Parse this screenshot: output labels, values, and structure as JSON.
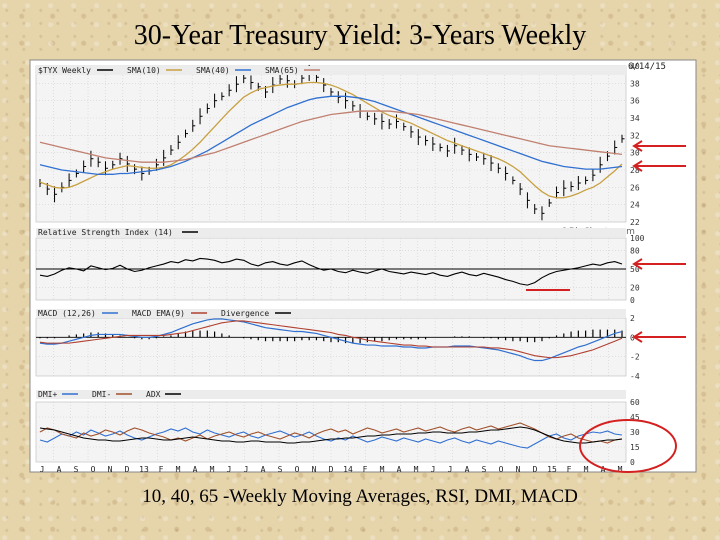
{
  "slide": {
    "title": "30-Year Treasury Yield: 3-Years Weekly",
    "caption": "10, 40, 65 -Weekly Moving Averages, RSI, DMI, MACD"
  },
  "colors": {
    "price": "#000000",
    "sma10": "#c8a040",
    "sma40": "#3070d0",
    "sma65": "#c08070",
    "macd": "#3070d0",
    "macd_ema": "#b04030",
    "dmi_plus": "#3070d0",
    "dmi_minus": "#a0522d",
    "adx": "#000000",
    "annotation": "#d42020"
  },
  "chart_data": [
    {
      "type": "line",
      "panel": "price",
      "legend": [
        "$TYX Weekly",
        "SMA(10)",
        "SMA(40)",
        "SMA(65)"
      ],
      "date_label": "6/14/15",
      "y_ticks": [
        "40",
        "38",
        "36",
        "34",
        "32",
        "30",
        "28",
        "26",
        "24",
        "22"
      ],
      "ylim": [
        22,
        40
      ],
      "watermark": "©BigCharts.com",
      "series": [
        {
          "name": "$TYX Weekly",
          "values": [
            26.5,
            25.8,
            25.2,
            26.0,
            26.8,
            27.6,
            28.4,
            29.3,
            28.9,
            28.2,
            28.6,
            29.3,
            28.7,
            28.1,
            27.6,
            27.9,
            28.6,
            29.4,
            30.3,
            31.2,
            32.2,
            33.1,
            34.2,
            35.1,
            36.0,
            36.5,
            37.2,
            37.9,
            38.6,
            38.1,
            37.6,
            37.0,
            37.8,
            38.5,
            38.3,
            37.9,
            38.6,
            39.2,
            38.7,
            37.8,
            37.0,
            36.4,
            36.0,
            35.4,
            34.8,
            34.2,
            33.9,
            33.6,
            33.3,
            33.6,
            33.0,
            32.4,
            31.8,
            31.4,
            31.0,
            30.6,
            30.2,
            30.8,
            30.3,
            29.8,
            29.5,
            29.3,
            28.8,
            28.2,
            27.6,
            26.8,
            25.8,
            24.5,
            23.5,
            23.0,
            24.2,
            25.4,
            25.9,
            26.1,
            26.5,
            26.8,
            27.4,
            28.6,
            29.6,
            30.6,
            31.6
          ]
        },
        {
          "name": "SMA(10)",
          "values": [
            26.6,
            26.3,
            26.0,
            25.9,
            26.0,
            26.3,
            26.7,
            27.1,
            27.5,
            27.8,
            28.1,
            28.3,
            28.5,
            28.4,
            28.3,
            28.2,
            28.2,
            28.3,
            28.6,
            29.1,
            29.7,
            30.4,
            31.2,
            32.1,
            33.0,
            33.9,
            34.8,
            35.6,
            36.4,
            36.9,
            37.3,
            37.5,
            37.7,
            37.8,
            37.9,
            37.9,
            38.0,
            38.1,
            38.1,
            38.0,
            37.8,
            37.5,
            37.1,
            36.7,
            36.2,
            35.7,
            35.2,
            34.7,
            34.3,
            34.0,
            33.7,
            33.4,
            33.0,
            32.6,
            32.2,
            31.8,
            31.4,
            31.1,
            30.8,
            30.5,
            30.2,
            29.9,
            29.6,
            29.3,
            28.9,
            28.4,
            27.8,
            27.0,
            26.2,
            25.5,
            25.0,
            24.8,
            24.8,
            25.0,
            25.3,
            25.7,
            26.0,
            26.5,
            27.2,
            27.9,
            28.7
          ]
        },
        {
          "name": "SMA(40)",
          "values": [
            28.6,
            28.4,
            28.2,
            28.0,
            27.9,
            27.8,
            27.7,
            27.6,
            27.5,
            27.5,
            27.5,
            27.6,
            27.6,
            27.7,
            27.8,
            27.9,
            28.0,
            28.2,
            28.4,
            28.7,
            29.0,
            29.4,
            29.8,
            30.2,
            30.7,
            31.2,
            31.7,
            32.2,
            32.7,
            33.2,
            33.6,
            34.0,
            34.4,
            34.8,
            35.2,
            35.5,
            35.8,
            36.1,
            36.3,
            36.4,
            36.5,
            36.5,
            36.5,
            36.4,
            36.3,
            36.1,
            35.9,
            35.6,
            35.3,
            35.0,
            34.7,
            34.4,
            34.1,
            33.8,
            33.5,
            33.2,
            32.9,
            32.6,
            32.3,
            32.0,
            31.7,
            31.4,
            31.1,
            30.8,
            30.5,
            30.2,
            29.9,
            29.6,
            29.3,
            29.0,
            28.8,
            28.6,
            28.4,
            28.3,
            28.2,
            28.1,
            28.1,
            28.1,
            28.2,
            28.3,
            28.4
          ]
        },
        {
          "name": "SMA(65)",
          "values": [
            31.2,
            31.0,
            30.8,
            30.6,
            30.4,
            30.2,
            30.0,
            29.8,
            29.6,
            29.4,
            29.3,
            29.2,
            29.1,
            29.0,
            28.9,
            28.9,
            28.9,
            28.9,
            29.0,
            29.1,
            29.2,
            29.4,
            29.6,
            29.8,
            30.0,
            30.3,
            30.6,
            30.9,
            31.2,
            31.5,
            31.8,
            32.1,
            32.4,
            32.7,
            33.0,
            33.3,
            33.6,
            33.8,
            34.0,
            34.2,
            34.4,
            34.5,
            34.6,
            34.7,
            34.8,
            34.8,
            34.8,
            34.8,
            34.8,
            34.7,
            34.6,
            34.5,
            34.4,
            34.2,
            34.0,
            33.8,
            33.6,
            33.4,
            33.2,
            33.0,
            32.8,
            32.6,
            32.4,
            32.2,
            32.0,
            31.8,
            31.6,
            31.4,
            31.2,
            31.0,
            30.8,
            30.7,
            30.6,
            30.5,
            30.4,
            30.3,
            30.2,
            30.1,
            30.0,
            29.9,
            29.8
          ]
        }
      ]
    },
    {
      "type": "line",
      "panel": "rsi",
      "legend": [
        "Relative Strength Index (14)"
      ],
      "y_ticks": [
        "100",
        "80",
        "50",
        "20",
        "0"
      ],
      "ylim": [
        0,
        100
      ],
      "reference_line": 50,
      "series": [
        {
          "name": "Relative Strength Index (14)",
          "values": [
            40,
            38,
            42,
            48,
            52,
            50,
            47,
            55,
            52,
            49,
            51,
            56,
            50,
            46,
            48,
            52,
            55,
            58,
            62,
            60,
            65,
            63,
            67,
            66,
            64,
            60,
            62,
            66,
            64,
            58,
            55,
            60,
            62,
            58,
            56,
            60,
            63,
            57,
            52,
            48,
            50,
            46,
            44,
            48,
            45,
            43,
            47,
            50,
            46,
            44,
            42,
            45,
            43,
            41,
            44,
            40,
            38,
            42,
            45,
            41,
            39,
            43,
            40,
            37,
            33,
            30,
            26,
            24,
            28,
            36,
            42,
            46,
            48,
            50,
            52,
            55,
            58,
            56,
            60,
            62,
            58
          ]
        }
      ]
    },
    {
      "type": "line",
      "panel": "macd",
      "legend": [
        "MACD (12,26)",
        "MACD EMA(9)",
        "Divergence"
      ],
      "y_ticks": [
        "2",
        "0",
        "-2",
        "-4"
      ],
      "ylim": [
        -4,
        2
      ],
      "series": [
        {
          "name": "MACD (12,26)",
          "values": [
            -0.6,
            -0.7,
            -0.7,
            -0.6,
            -0.4,
            -0.2,
            0.0,
            0.2,
            0.3,
            0.3,
            0.3,
            0.3,
            0.2,
            0.1,
            0.0,
            0.0,
            0.1,
            0.3,
            0.5,
            0.8,
            1.1,
            1.4,
            1.6,
            1.8,
            1.9,
            1.9,
            1.8,
            1.7,
            1.6,
            1.4,
            1.2,
            1.0,
            0.9,
            0.8,
            0.7,
            0.6,
            0.6,
            0.5,
            0.4,
            0.2,
            0.0,
            -0.2,
            -0.4,
            -0.6,
            -0.7,
            -0.8,
            -0.8,
            -0.9,
            -0.9,
            -0.9,
            -1.0,
            -1.0,
            -1.1,
            -1.1,
            -1.0,
            -1.0,
            -1.0,
            -0.9,
            -0.9,
            -0.9,
            -1.0,
            -1.1,
            -1.2,
            -1.3,
            -1.5,
            -1.7,
            -1.9,
            -2.2,
            -2.4,
            -2.4,
            -2.2,
            -1.9,
            -1.6,
            -1.3,
            -1.0,
            -0.8,
            -0.5,
            -0.2,
            0.1,
            0.4,
            0.6
          ]
        },
        {
          "name": "MACD EMA(9)",
          "values": [
            -0.5,
            -0.6,
            -0.6,
            -0.6,
            -0.6,
            -0.5,
            -0.4,
            -0.3,
            -0.2,
            -0.1,
            0.0,
            0.1,
            0.2,
            0.2,
            0.2,
            0.2,
            0.2,
            0.2,
            0.3,
            0.4,
            0.5,
            0.7,
            0.9,
            1.1,
            1.3,
            1.5,
            1.6,
            1.7,
            1.7,
            1.6,
            1.5,
            1.4,
            1.3,
            1.2,
            1.1,
            1.0,
            0.9,
            0.8,
            0.7,
            0.6,
            0.5,
            0.3,
            0.2,
            0.0,
            -0.1,
            -0.3,
            -0.4,
            -0.5,
            -0.6,
            -0.7,
            -0.8,
            -0.8,
            -0.9,
            -0.9,
            -1.0,
            -1.0,
            -1.0,
            -1.0,
            -1.0,
            -1.0,
            -1.0,
            -1.0,
            -1.1,
            -1.1,
            -1.2,
            -1.3,
            -1.5,
            -1.7,
            -1.9,
            -2.0,
            -2.1,
            -2.1,
            -2.0,
            -1.9,
            -1.7,
            -1.5,
            -1.3,
            -1.0,
            -0.7,
            -0.4,
            -0.1
          ]
        }
      ]
    },
    {
      "type": "line",
      "panel": "dmi",
      "legend": [
        "DMI+",
        "DMI-",
        "ADX"
      ],
      "y_ticks": [
        "60",
        "45",
        "30",
        "15",
        "0"
      ],
      "ylim": [
        0,
        60
      ],
      "x_ticks": [
        "J",
        "A",
        "S",
        "O",
        "N",
        "D",
        "13",
        "F",
        "M",
        "A",
        "M",
        "J",
        "J",
        "A",
        "S",
        "O",
        "N",
        "D",
        "14",
        "F",
        "M",
        "A",
        "M",
        "J",
        "J",
        "A",
        "S",
        "O",
        "N",
        "D",
        "15",
        "F",
        "M",
        "A",
        "M"
      ],
      "series": [
        {
          "name": "DMI+",
          "values": [
            22,
            20,
            24,
            28,
            26,
            30,
            27,
            32,
            29,
            26,
            28,
            31,
            27,
            24,
            22,
            25,
            28,
            30,
            33,
            31,
            34,
            30,
            28,
            32,
            29,
            27,
            25,
            28,
            30,
            26,
            24,
            27,
            29,
            31,
            28,
            25,
            27,
            30,
            26,
            23,
            21,
            24,
            22,
            26,
            23,
            20,
            22,
            25,
            23,
            21,
            24,
            22,
            20,
            23,
            21,
            19,
            22,
            24,
            21,
            19,
            22,
            20,
            18,
            21,
            19,
            17,
            15,
            14,
            18,
            22,
            26,
            28,
            24,
            22,
            26,
            28,
            30,
            29,
            31,
            28,
            27
          ]
        },
        {
          "name": "DMI-",
          "values": [
            30,
            34,
            32,
            28,
            26,
            24,
            29,
            26,
            28,
            32,
            30,
            27,
            31,
            34,
            32,
            29,
            27,
            25,
            22,
            24,
            21,
            24,
            27,
            23,
            26,
            28,
            30,
            27,
            25,
            28,
            30,
            27,
            25,
            23,
            26,
            29,
            27,
            24,
            28,
            31,
            33,
            30,
            32,
            28,
            31,
            34,
            32,
            29,
            31,
            33,
            30,
            32,
            34,
            31,
            33,
            35,
            32,
            30,
            33,
            35,
            32,
            34,
            36,
            33,
            35,
            37,
            39,
            36,
            33,
            29,
            25,
            23,
            26,
            28,
            24,
            22,
            20,
            21,
            19,
            22,
            23
          ]
        },
        {
          "name": "ADX",
          "values": [
            34,
            33,
            32,
            30,
            28,
            26,
            24,
            23,
            22,
            22,
            21,
            21,
            22,
            23,
            24,
            24,
            23,
            22,
            22,
            23,
            24,
            25,
            24,
            23,
            22,
            21,
            21,
            20,
            20,
            21,
            21,
            20,
            20,
            20,
            19,
            19,
            20,
            20,
            21,
            22,
            23,
            23,
            24,
            24,
            25,
            26,
            26,
            27,
            27,
            28,
            28,
            28,
            29,
            29,
            30,
            30,
            29,
            29,
            29,
            30,
            30,
            31,
            32,
            32,
            33,
            34,
            35,
            34,
            32,
            29,
            26,
            23,
            21,
            20,
            19,
            19,
            20,
            21,
            22,
            22,
            23
          ]
        }
      ]
    }
  ]
}
